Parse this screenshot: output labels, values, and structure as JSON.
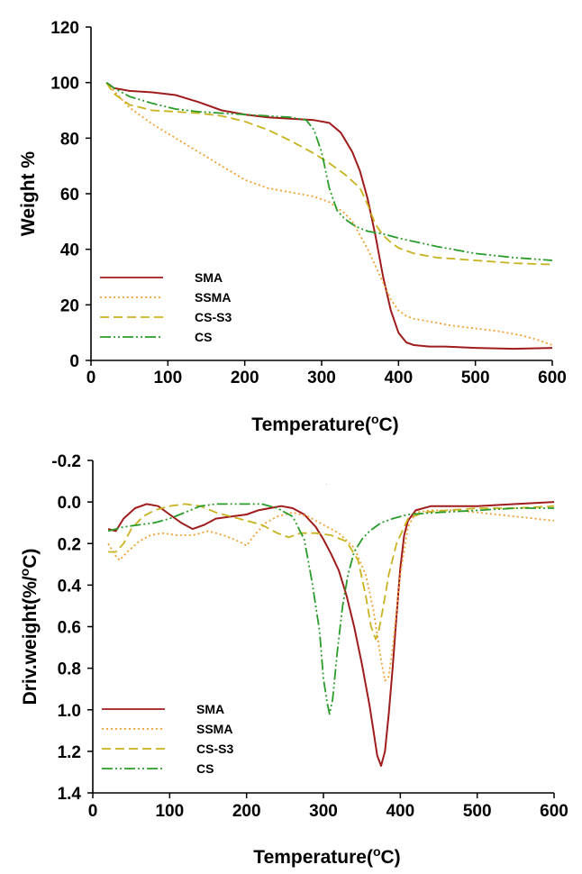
{
  "chart_data": [
    {
      "type": "line",
      "xlabel": "Temperature(°C)",
      "xlabel_main": "Temperature(",
      "xlabel_sup": "o",
      "xlabel_end": "C)",
      "ylabel": "Weight %",
      "xlim": [
        0,
        600
      ],
      "ylim": [
        0,
        120
      ],
      "y_inverted": false,
      "xticks": [
        0,
        100,
        200,
        300,
        400,
        500,
        600
      ],
      "yticks": [
        0,
        20,
        40,
        60,
        80,
        100,
        120
      ],
      "ytick_labels": [
        "0",
        "20",
        "40",
        "60",
        "80",
        "100",
        "120"
      ],
      "grid": false,
      "legend_position": "bottom-left",
      "series": [
        {
          "name": "SMA",
          "color": "#a01c1c",
          "dash": "solid",
          "x": [
            20,
            30,
            50,
            80,
            110,
            140,
            170,
            200,
            230,
            260,
            290,
            310,
            325,
            340,
            350,
            360,
            370,
            380,
            390,
            400,
            410,
            420,
            440,
            460,
            500,
            550,
            600
          ],
          "y": [
            100,
            98,
            97,
            96.5,
            95.5,
            93,
            90,
            88.5,
            87.5,
            87,
            86.5,
            85.5,
            82,
            75,
            68,
            58,
            45,
            30,
            18,
            10,
            6.5,
            5.5,
            5,
            5,
            4.5,
            4.2,
            4.5
          ]
        },
        {
          "name": "SSMA",
          "color": "#f0a030",
          "dash": "dot",
          "x": [
            20,
            30,
            50,
            80,
            110,
            140,
            170,
            200,
            230,
            260,
            290,
            310,
            330,
            340,
            350,
            360,
            370,
            380,
            390,
            400,
            410,
            420,
            440,
            470,
            500,
            530,
            560,
            580,
            600
          ],
          "y": [
            100,
            97,
            91,
            85,
            80,
            75,
            70,
            65,
            62,
            60.5,
            59,
            57,
            53,
            50,
            45,
            40,
            34,
            28,
            22,
            18,
            16,
            15,
            14,
            12.5,
            11.5,
            10.5,
            9,
            7.5,
            5.5
          ]
        },
        {
          "name": "CS-S3",
          "color": "#c8b21e",
          "dash": "dash",
          "x": [
            20,
            30,
            50,
            80,
            110,
            140,
            170,
            200,
            230,
            260,
            290,
            310,
            330,
            350,
            360,
            370,
            380,
            390,
            400,
            420,
            450,
            500,
            550,
            600
          ],
          "y": [
            100,
            96,
            92,
            90,
            89.5,
            89,
            88,
            86,
            83,
            79,
            74.5,
            71,
            67,
            62,
            56,
            49,
            45,
            42.5,
            40.5,
            38.5,
            37,
            36,
            35,
            34.5
          ]
        },
        {
          "name": "CS",
          "color": "#2a9c2a",
          "dash": "dashdotdot",
          "x": [
            20,
            30,
            50,
            80,
            110,
            140,
            170,
            200,
            230,
            260,
            280,
            290,
            300,
            310,
            320,
            330,
            340,
            350,
            360,
            370,
            380,
            400,
            450,
            500,
            550,
            600
          ],
          "y": [
            100,
            98,
            95,
            92.5,
            90.5,
            89.5,
            89,
            88.5,
            88,
            87.5,
            86.5,
            83,
            75,
            62,
            54,
            51,
            49,
            47.5,
            46.5,
            46,
            45.5,
            44,
            41,
            38.5,
            37,
            36
          ]
        }
      ]
    },
    {
      "type": "line",
      "xlabel": "Temperature(°C)",
      "xlabel_main": "Temperature(",
      "xlabel_sup": "o",
      "xlabel_end": "C)",
      "ylabel": "Driv.weight(%/°C)",
      "ylabel_main": "Driv.weight(%/",
      "ylabel_sup": "o",
      "ylabel_end": "C)",
      "xlim": [
        0,
        600
      ],
      "ylim": [
        -0.2,
        1.4
      ],
      "y_inverted": true,
      "xticks": [
        0,
        100,
        200,
        300,
        400,
        500,
        600
      ],
      "yticks": [
        -0.2,
        0.0,
        0.2,
        0.4,
        0.6,
        0.8,
        1.0,
        1.2,
        1.4
      ],
      "ytick_labels": [
        "-0.2",
        "0.0",
        "0.2",
        "0.4",
        "0.6",
        "0.8",
        "1.0",
        "1.2",
        "1.4"
      ],
      "grid": false,
      "legend_position": "bottom-left",
      "series": [
        {
          "name": "SMA",
          "color": "#a01c1c",
          "dash": "solid",
          "x": [
            20,
            30,
            40,
            55,
            70,
            85,
            100,
            115,
            130,
            145,
            160,
            180,
            200,
            215,
            230,
            245,
            260,
            275,
            290,
            300,
            310,
            320,
            330,
            340,
            350,
            360,
            365,
            370,
            375,
            380,
            385,
            390,
            395,
            400,
            405,
            410,
            420,
            440,
            460,
            500,
            550,
            600
          ],
          "y": [
            0.13,
            0.14,
            0.08,
            0.03,
            0.01,
            0.02,
            0.06,
            0.1,
            0.13,
            0.11,
            0.08,
            0.07,
            0.06,
            0.04,
            0.03,
            0.02,
            0.03,
            0.06,
            0.12,
            0.18,
            0.25,
            0.33,
            0.45,
            0.6,
            0.78,
            0.98,
            1.1,
            1.22,
            1.27,
            1.2,
            1.02,
            0.8,
            0.55,
            0.32,
            0.16,
            0.09,
            0.04,
            0.02,
            0.02,
            0.02,
            0.01,
            0.0
          ]
        },
        {
          "name": "SSMA",
          "color": "#f0a030",
          "dash": "dot",
          "x": [
            20,
            30,
            35,
            45,
            60,
            75,
            90,
            110,
            130,
            150,
            170,
            190,
            200,
            210,
            225,
            240,
            260,
            280,
            300,
            320,
            340,
            355,
            365,
            375,
            380,
            385,
            390,
            400,
            410,
            420,
            440,
            470,
            500,
            550,
            600
          ],
          "y": [
            0.2,
            0.26,
            0.28,
            0.24,
            0.19,
            0.16,
            0.15,
            0.16,
            0.16,
            0.14,
            0.16,
            0.19,
            0.21,
            0.16,
            0.1,
            0.07,
            0.05,
            0.07,
            0.11,
            0.15,
            0.22,
            0.35,
            0.52,
            0.76,
            0.86,
            0.84,
            0.7,
            0.35,
            0.12,
            0.05,
            0.04,
            0.04,
            0.05,
            0.07,
            0.09
          ]
        },
        {
          "name": "CS-S3",
          "color": "#c8b21e",
          "dash": "dash",
          "x": [
            20,
            30,
            40,
            50,
            65,
            80,
            100,
            120,
            140,
            160,
            180,
            200,
            220,
            240,
            255,
            270,
            290,
            310,
            330,
            345,
            355,
            362,
            368,
            372,
            378,
            385,
            395,
            410,
            430,
            460,
            500,
            550,
            600
          ],
          "y": [
            0.24,
            0.24,
            0.2,
            0.13,
            0.07,
            0.04,
            0.02,
            0.01,
            0.02,
            0.05,
            0.07,
            0.09,
            0.11,
            0.15,
            0.17,
            0.15,
            0.15,
            0.16,
            0.19,
            0.28,
            0.45,
            0.6,
            0.66,
            0.62,
            0.5,
            0.35,
            0.2,
            0.08,
            0.05,
            0.04,
            0.03,
            0.03,
            0.02
          ]
        },
        {
          "name": "CS",
          "color": "#2a9c2a",
          "dash": "dashdotdot",
          "x": [
            20,
            40,
            60,
            80,
            100,
            120,
            140,
            160,
            180,
            200,
            220,
            240,
            260,
            275,
            285,
            295,
            300,
            305,
            308,
            312,
            318,
            325,
            332,
            340,
            350,
            360,
            375,
            390,
            410,
            450,
            500,
            550,
            600
          ],
          "y": [
            0.14,
            0.12,
            0.11,
            0.1,
            0.08,
            0.05,
            0.02,
            0.01,
            0.01,
            0.01,
            0.01,
            0.03,
            0.07,
            0.18,
            0.38,
            0.62,
            0.85,
            0.97,
            1.02,
            0.95,
            0.72,
            0.5,
            0.35,
            0.24,
            0.18,
            0.14,
            0.1,
            0.08,
            0.06,
            0.05,
            0.04,
            0.03,
            0.03
          ]
        }
      ]
    }
  ]
}
